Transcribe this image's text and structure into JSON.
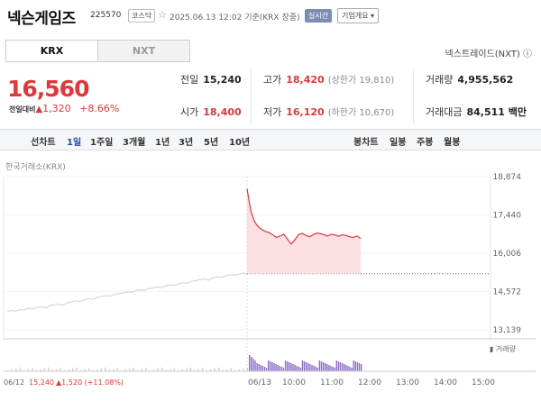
{
  "header": {
    "name": "넥슨게임즈",
    "code": "225570",
    "market": "코스닥",
    "datetime": "2025.06.13 12:02 기준(KRX 장중)",
    "realtime": "실시간",
    "overview": "기업개요 ▾"
  },
  "tabs": {
    "krx": "KRX",
    "nxt": "NXT"
  },
  "nxt_link": "넥스트레이드(NXT) ⓘ",
  "price": {
    "current": "16,560",
    "change_label": "전일대비",
    "change_arrow": "▲",
    "change_value": "1,320",
    "change_pct": "+8.66%"
  },
  "info": {
    "prev_label": "전일",
    "prev_value": "15,240",
    "high_label": "고가",
    "high_value": "18,420",
    "upper_label": "(상한가 19,810)",
    "volume_label": "거래량",
    "volume_value": "4,955,562",
    "open_label": "시가",
    "open_value": "18,400",
    "low_label": "저가",
    "low_value": "16,120",
    "lower_label": "(하한가 10,670)",
    "amount_label": "거래대금",
    "amount_value": "84,511 백만"
  },
  "toolbar": {
    "line": "선차트",
    "p1d": "1일",
    "p1w": "1주일",
    "p3m": "3개월",
    "p1y": "1년",
    "p3y": "3년",
    "p5y": "5년",
    "p10y": "10년",
    "candle": "봉차트",
    "daily": "일봉",
    "weekly": "주봉",
    "monthly": "월봉"
  },
  "chart_label": "한국거래소(KRX)",
  "chart_data": {
    "type": "line",
    "y_ticks": [
      "18,874",
      "17,440",
      "16,006",
      "14,572",
      "13,139"
    ],
    "ylim": [
      13139,
      18874
    ],
    "prev_close": 15240,
    "volume_label": "▮ 거래량",
    "x_ticks": [
      "06/13",
      "10:00",
      "11:00",
      "12:00",
      "13:00",
      "14:00",
      "15:00"
    ],
    "bottom_date": "06/12",
    "bottom_price": "15,240",
    "bottom_change": "▲1,520 (+11.08%)",
    "series": [
      {
        "session": "06/12",
        "values": [
          13820,
          13860,
          13840,
          13900,
          13880,
          13950,
          13920,
          13980,
          14000,
          13960,
          14050,
          14080,
          14100,
          14060,
          14150,
          14180,
          14220,
          14200,
          14260,
          14300,
          14280,
          14350,
          14380,
          14420,
          14400,
          14460,
          14500,
          14520,
          14560,
          14540,
          14600,
          14640,
          14620,
          14680,
          14700,
          14750,
          14720,
          14780,
          14820,
          14800,
          14860,
          14900,
          14880,
          14950,
          14980,
          15020,
          15050,
          15000,
          15080,
          15120,
          15100,
          15160,
          15200,
          15180,
          15220,
          15260,
          15240
        ]
      },
      {
        "session": "06/13",
        "values": [
          18420,
          17600,
          17200,
          17000,
          16900,
          16820,
          16780,
          16700,
          16600,
          16650,
          16720,
          16540,
          16350,
          16500,
          16700,
          16750,
          16680,
          16620,
          16700,
          16760,
          16740,
          16700,
          16650,
          16720,
          16690,
          16640,
          16700,
          16670,
          16620,
          16600,
          16650,
          16560
        ]
      }
    ]
  }
}
